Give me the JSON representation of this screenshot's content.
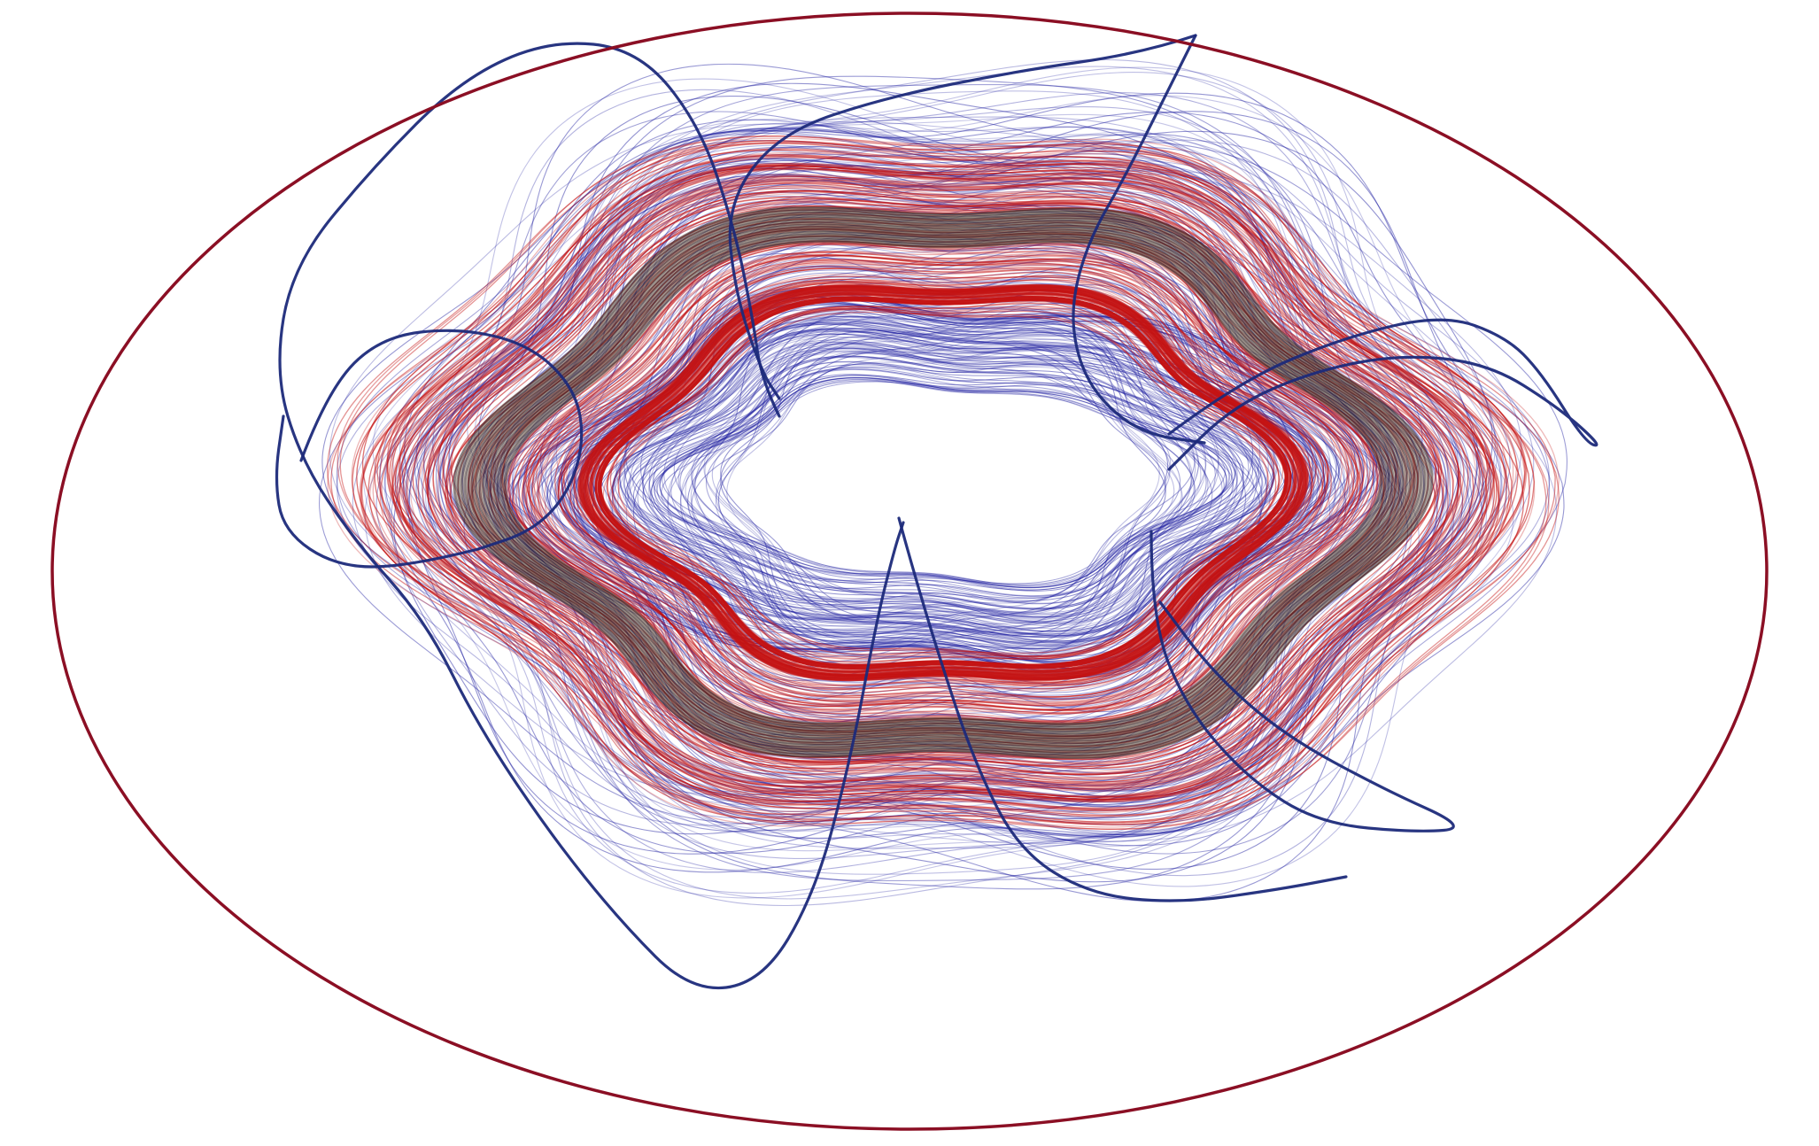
{
  "scene": {
    "background": "#ffffff",
    "colors": {
      "boundary": "#8b0f24",
      "outer_streamlines": "#1a1a9e",
      "inner_streamlines": "#c41212",
      "core_band": "#3a2a2a",
      "core_band_light": "#8a7a6a",
      "wandering_curves": "#1c2a7a"
    },
    "layers": [
      {
        "id": "boundary-ellipse",
        "kind": "closed-curve",
        "color_key": "boundary"
      },
      {
        "id": "outer-blue-streamline-bundle",
        "kind": "streamline-bundle",
        "color_key": "outer_streamlines"
      },
      {
        "id": "red-streamline-bundle",
        "kind": "streamline-bundle",
        "color_key": "inner_streamlines"
      },
      {
        "id": "dark-core-band",
        "kind": "streamline-bundle",
        "color_key": "core_band"
      },
      {
        "id": "wandering-field-lines",
        "kind": "open-curves",
        "color_key": "wandering_curves"
      }
    ]
  }
}
